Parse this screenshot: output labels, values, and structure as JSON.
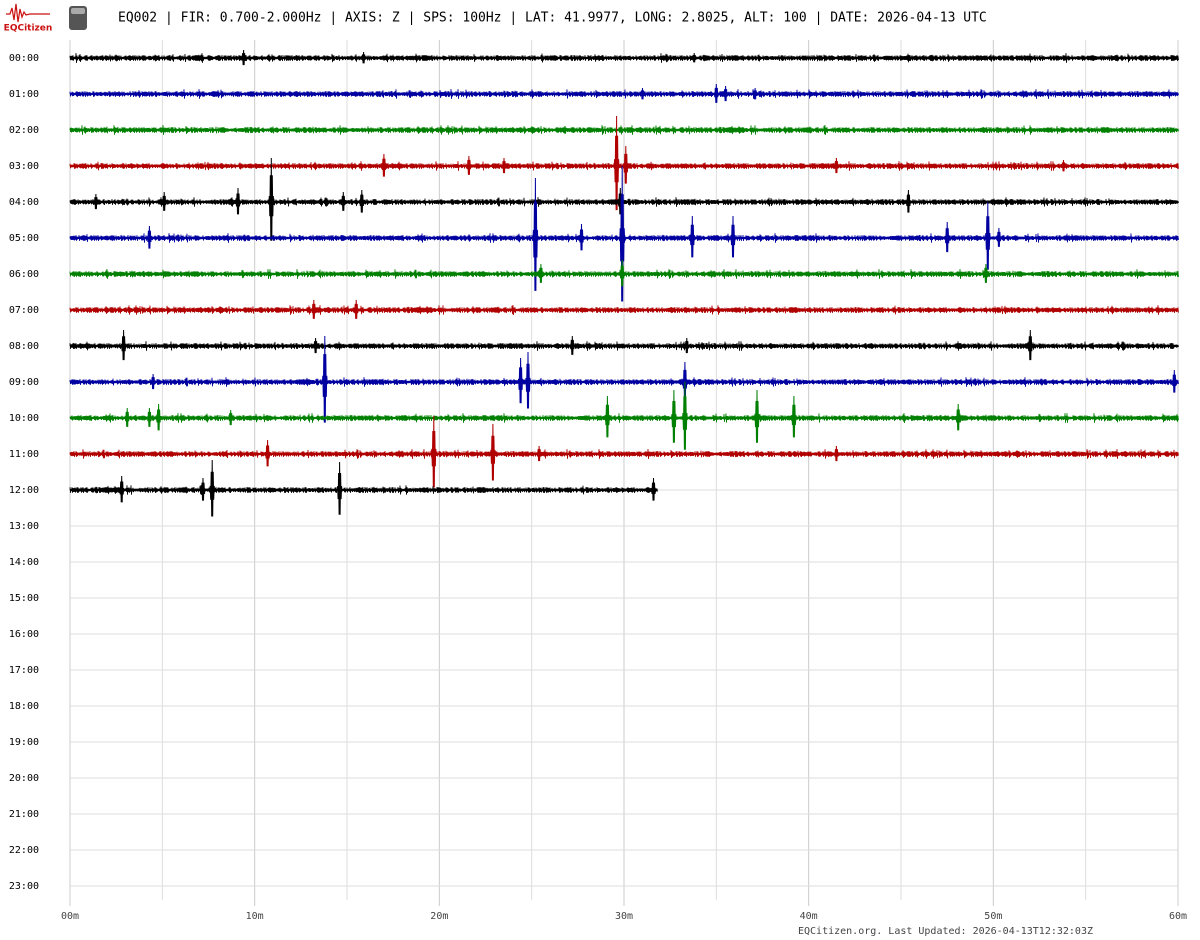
{
  "header": {
    "logo_text": "EQCitizen",
    "title": "EQ002 | FIR: 0.700-2.000Hz | AXIS: Z | SPS: 100Hz | LAT: 41.9977, LONG: 2.8025, ALT: 100 | DATE: 2026-04-13 UTC"
  },
  "chart_data": {
    "type": "helicorder",
    "xlim": [
      0,
      60
    ],
    "xticks": [
      {
        "value": 0,
        "label": "00m"
      },
      {
        "value": 10,
        "label": "10m"
      },
      {
        "value": 20,
        "label": "20m"
      },
      {
        "value": 30,
        "label": "30m"
      },
      {
        "value": 40,
        "label": "40m"
      },
      {
        "value": 50,
        "label": "50m"
      },
      {
        "value": 60,
        "label": "60m"
      }
    ],
    "minor_xticks": [
      5,
      15,
      25,
      35,
      45,
      55
    ],
    "rows": [
      {
        "label": "00:00",
        "color": "#000000",
        "events": [
          [
            9.4,
            8
          ],
          [
            15.9,
            6
          ],
          [
            33.8,
            5
          ]
        ]
      },
      {
        "label": "01:00",
        "color": "#0000a0",
        "events": [
          [
            31,
            6
          ],
          [
            35,
            10
          ],
          [
            35.5,
            8
          ],
          [
            37.1,
            6
          ]
        ]
      },
      {
        "label": "02:00",
        "color": "#008000",
        "events": [
          [
            26.8,
            4
          ]
        ]
      },
      {
        "label": "03:00",
        "color": "#b00000",
        "events": [
          [
            17,
            12
          ],
          [
            21.6,
            10
          ],
          [
            23.5,
            8
          ],
          [
            29.6,
            50
          ],
          [
            30.1,
            20
          ],
          [
            41.5,
            8
          ],
          [
            53.8,
            6
          ]
        ]
      },
      {
        "label": "04:00",
        "color": "#000000",
        "events": [
          [
            1.4,
            8
          ],
          [
            5.1,
            10
          ],
          [
            9.1,
            14
          ],
          [
            10.9,
            44
          ],
          [
            14.8,
            10
          ],
          [
            15.8,
            12
          ],
          [
            29.8,
            14
          ],
          [
            45.4,
            12
          ]
        ]
      },
      {
        "label": "05:00",
        "color": "#0000a0",
        "events": [
          [
            4.3,
            12
          ],
          [
            25.2,
            60
          ],
          [
            27.7,
            14
          ],
          [
            29.9,
            72
          ],
          [
            33.7,
            22
          ],
          [
            35.9,
            22
          ],
          [
            47.5,
            16
          ],
          [
            49.7,
            36
          ],
          [
            50.3,
            10
          ]
        ]
      },
      {
        "label": "06:00",
        "color": "#008000",
        "events": [
          [
            25.5,
            10
          ],
          [
            29.9,
            14
          ],
          [
            49.6,
            10
          ]
        ]
      },
      {
        "label": "07:00",
        "color": "#b00000",
        "events": [
          [
            13.2,
            10
          ],
          [
            15.5,
            10
          ]
        ]
      },
      {
        "label": "08:00",
        "color": "#000000",
        "events": [
          [
            2.9,
            16
          ],
          [
            13.3,
            8
          ],
          [
            27.2,
            10
          ],
          [
            33.4,
            8
          ],
          [
            52,
            16
          ]
        ]
      },
      {
        "label": "09:00",
        "color": "#0000a0",
        "events": [
          [
            4.5,
            8
          ],
          [
            13.8,
            46
          ],
          [
            24.4,
            24
          ],
          [
            24.8,
            30
          ],
          [
            33.3,
            20
          ],
          [
            59.8,
            12
          ]
        ]
      },
      {
        "label": "10:00",
        "color": "#008000",
        "events": [
          [
            3.1,
            10
          ],
          [
            4.3,
            10
          ],
          [
            4.8,
            14
          ],
          [
            8.7,
            8
          ],
          [
            29.1,
            22
          ],
          [
            32.7,
            28
          ],
          [
            33.3,
            36
          ],
          [
            37.2,
            28
          ],
          [
            39.2,
            22
          ],
          [
            48.1,
            14
          ]
        ]
      },
      {
        "label": "11:00",
        "color": "#b00000",
        "events": [
          [
            10.7,
            14
          ],
          [
            19.7,
            38
          ],
          [
            22.9,
            30
          ],
          [
            25.4,
            8
          ],
          [
            41.5,
            8
          ]
        ]
      },
      {
        "label": "12:00",
        "color": "#000000",
        "trace_end": 31.8,
        "events": [
          [
            2.8,
            14
          ],
          [
            7.2,
            12
          ],
          [
            7.7,
            30
          ],
          [
            14.6,
            28
          ],
          [
            31.6,
            12
          ]
        ]
      },
      {
        "label": "13:00"
      },
      {
        "label": "14:00"
      },
      {
        "label": "15:00"
      },
      {
        "label": "16:00"
      },
      {
        "label": "17:00"
      },
      {
        "label": "18:00"
      },
      {
        "label": "19:00"
      },
      {
        "label": "20:00"
      },
      {
        "label": "21:00"
      },
      {
        "label": "22:00"
      },
      {
        "label": "23:00"
      }
    ]
  },
  "footer": {
    "text": "EQCitizen.org. Last Updated: 2026-04-13T12:32:03Z"
  }
}
